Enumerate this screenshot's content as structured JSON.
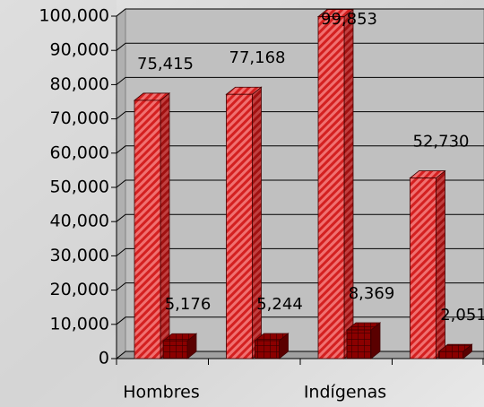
{
  "chart_data": {
    "type": "bar3d",
    "categories": [
      "Hombres",
      null,
      "Indígenas",
      null
    ],
    "series": [
      {
        "color": "#e03a3a",
        "values": [
          75415,
          77168,
          99853,
          52730
        ],
        "value_labels": [
          "75,415",
          "77,168",
          "99,853",
          "52,730"
        ]
      },
      {
        "color": "#8b0000",
        "values": [
          5176,
          5244,
          8369,
          2051
        ],
        "value_labels": [
          "5,176",
          "5,244",
          "8,369",
          "2,051"
        ]
      }
    ],
    "ylim": [
      0,
      100000
    ],
    "yticks": [
      0,
      {
        "value": 10000,
        "label": "10,000"
      },
      {
        "value": 20000,
        "label": "20,000"
      },
      {
        "value": 30000,
        "label": "30,000"
      },
      {
        "value": 40000,
        "label": "40,000"
      },
      {
        "value": 50000,
        "label": "50,000"
      },
      {
        "value": 60000,
        "label": "60,000"
      },
      {
        "value": 70000,
        "label": "70,000"
      },
      {
        "value": 80000,
        "label": "80,000"
      },
      {
        "value": 90000,
        "label": "90,000"
      },
      {
        "value": 100000,
        "label": "100,000"
      }
    ],
    "grid": true
  }
}
